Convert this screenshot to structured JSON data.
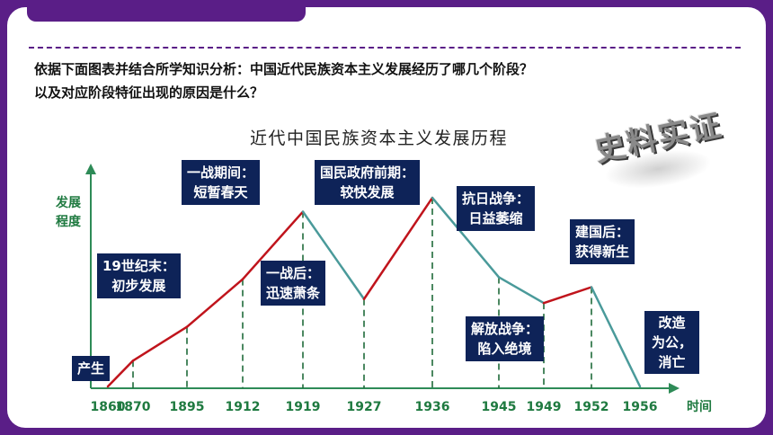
{
  "question": [
    "依据下面图表并结合所学知识分析：中国近代民族资本主义发展经历了哪几个阶段？",
    "以及对应阶段特征出现的原因是什么？"
  ],
  "stamp": "史料实证",
  "labels": [
    [
      "产生"
    ],
    [
      "19世纪末：",
      "初步发展"
    ],
    [
      "一战期间：",
      "短暂春天"
    ],
    [
      "一战后：",
      "迅速萧条"
    ],
    [
      "国民政府前期：",
      "较快发展"
    ],
    [
      "抗日战争：",
      "日益萎缩"
    ],
    [
      "解放战争：",
      "陷入绝境"
    ],
    [
      "建国后：",
      "获得新生"
    ],
    [
      "改造",
      "为公，",
      "消亡"
    ]
  ],
  "colors": {
    "frame": "#5a1e87",
    "axis": "#2e8b57",
    "rise": "#c0141c",
    "fall": "#4a9a9a",
    "label_bg": "#0e2358"
  },
  "chart_data": {
    "type": "line",
    "title": "近代中国民族资本主义发展历程",
    "ylabel": "发展程度",
    "xlabel": "时间",
    "x": [
      1860,
      1870,
      1895,
      1912,
      1919,
      1927,
      1936,
      1945,
      1949,
      1952,
      1956
    ],
    "y": [
      0,
      1.3,
      3.0,
      5.4,
      8.8,
      4.4,
      9.5,
      5.5,
      4.2,
      5.0,
      0
    ],
    "y_unit": "relative level (unlabeled axis)",
    "segment_trend": [
      "rise",
      "rise",
      "rise",
      "rise",
      "fall",
      "rise",
      "fall",
      "fall",
      "rise",
      "fall"
    ],
    "guides_dashed": true
  }
}
